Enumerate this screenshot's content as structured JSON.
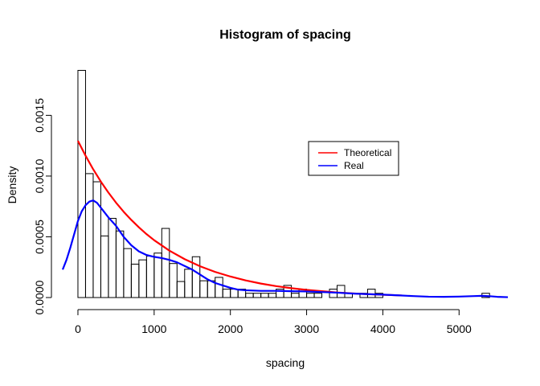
{
  "chart_data": {
    "type": "histogram",
    "title": "Histogram of spacing",
    "xlabel": "spacing",
    "ylabel": "Density",
    "xlim": [
      -200,
      5640
    ],
    "ylim": [
      0,
      0.00188
    ],
    "x_ticks": [
      0,
      1000,
      2000,
      3000,
      4000,
      5000
    ],
    "x_tick_labels": [
      "0",
      "1000",
      "2000",
      "3000",
      "4000",
      "5000"
    ],
    "y_ticks": [
      0,
      0.0005,
      0.001,
      0.0015
    ],
    "y_tick_labels": [
      "0.0000",
      "0.0005",
      "0.0010",
      "0.0015"
    ],
    "bin_width": 100,
    "bins": {
      "start": 0,
      "densities": [
        0.00187,
        0.00102,
        0.000953,
        0.000507,
        0.000652,
        0.000548,
        0.000403,
        0.000275,
        0.00031,
        0.000341,
        0.000366,
        0.000569,
        0.00028,
        0.000132,
        0.000233,
        0.000336,
        0.000138,
        0.000138,
        0.000166,
        6.9e-05,
        6.9e-05,
        6.9e-05,
        3.5e-05,
        3.5e-05,
        3.5e-05,
        3.5e-05,
        6.9e-05,
        0.0001,
        3.5e-05,
        6.9e-05,
        3.5e-05,
        3.5e-05,
        0.0,
        6.9e-05,
        0.0001,
        3.5e-05,
        0.0,
        3.5e-05,
        6.9e-05,
        3.5e-05,
        0.0,
        0.0,
        0.0,
        0.0,
        0.0,
        0.0,
        0.0,
        0.0,
        0.0,
        0.0,
        0.0,
        0.0,
        0.0,
        3.5e-05
      ]
    },
    "series": [
      {
        "name": "Theoretical",
        "color": "#ff0000",
        "points": [
          [
            0,
            0.00129
          ],
          [
            100,
            0.001168
          ],
          [
            200,
            0.001056
          ],
          [
            300,
            0.000955
          ],
          [
            400,
            0.000864
          ],
          [
            500,
            0.000781
          ],
          [
            600,
            0.000706
          ],
          [
            700,
            0.000639
          ],
          [
            800,
            0.000578
          ],
          [
            900,
            0.000522
          ],
          [
            1000,
            0.000472
          ],
          [
            1200,
            0.000386
          ],
          [
            1400,
            0.000316
          ],
          [
            1600,
            0.000258
          ],
          [
            1800,
            0.000211
          ],
          [
            2000,
            0.000173
          ],
          [
            2200,
            0.000141
          ],
          [
            2400,
            0.000115
          ],
          [
            2600,
            9.4e-05
          ],
          [
            2800,
            7.7e-05
          ],
          [
            3000,
            6.3e-05
          ],
          [
            3200,
            5.2e-05
          ],
          [
            3400,
            4.2e-05
          ],
          [
            3600,
            3.4e-05
          ],
          [
            3800,
            2.8e-05
          ],
          [
            4000,
            2.3e-05
          ],
          [
            4250,
            1.7e-05
          ]
        ]
      },
      {
        "name": "Real",
        "color": "#0000ff",
        "points": [
          [
            -200,
            0.00023
          ],
          [
            -150,
            0.00031
          ],
          [
            -100,
            0.00041
          ],
          [
            -50,
            0.00052
          ],
          [
            0,
            0.00063
          ],
          [
            50,
            0.00071
          ],
          [
            100,
            0.00076
          ],
          [
            150,
            0.00079
          ],
          [
            200,
            0.0008
          ],
          [
            250,
            0.00078
          ],
          [
            300,
            0.00074
          ],
          [
            400,
            0.00066
          ],
          [
            500,
            0.00059
          ],
          [
            600,
            0.0005
          ],
          [
            700,
            0.00043
          ],
          [
            800,
            0.00038
          ],
          [
            900,
            0.00035
          ],
          [
            1000,
            0.000335
          ],
          [
            1100,
            0.000325
          ],
          [
            1200,
            0.00031
          ],
          [
            1300,
            0.00029
          ],
          [
            1400,
            0.00026
          ],
          [
            1500,
            0.00023
          ],
          [
            1600,
            0.00019
          ],
          [
            1700,
            0.00015
          ],
          [
            1800,
            0.00012
          ],
          [
            1900,
            0.0001
          ],
          [
            2000,
            8e-05
          ],
          [
            2100,
            6.5e-05
          ],
          [
            2200,
            6e-05
          ],
          [
            2400,
            5.5e-05
          ],
          [
            2600,
            5.5e-05
          ],
          [
            2800,
            5.2e-05
          ],
          [
            3000,
            5e-05
          ],
          [
            3200,
            4.5e-05
          ],
          [
            3400,
            4e-05
          ],
          [
            3600,
            3.3e-05
          ],
          [
            3800,
            2.8e-05
          ],
          [
            4000,
            2.4e-05
          ],
          [
            4200,
            1.8e-05
          ],
          [
            4400,
            1.2e-05
          ],
          [
            4600,
            7e-06
          ],
          [
            4800,
            6e-06
          ],
          [
            5000,
            8e-06
          ],
          [
            5200,
            1.2e-05
          ],
          [
            5300,
            1.4e-05
          ],
          [
            5400,
            1.1e-05
          ],
          [
            5500,
            6e-06
          ],
          [
            5640,
            3e-06
          ]
        ]
      }
    ],
    "legend": {
      "position": "top-right",
      "entries": [
        {
          "label": "Theoretical",
          "color": "#ff0000"
        },
        {
          "label": "Real",
          "color": "#0000ff"
        }
      ]
    },
    "grid": false
  }
}
